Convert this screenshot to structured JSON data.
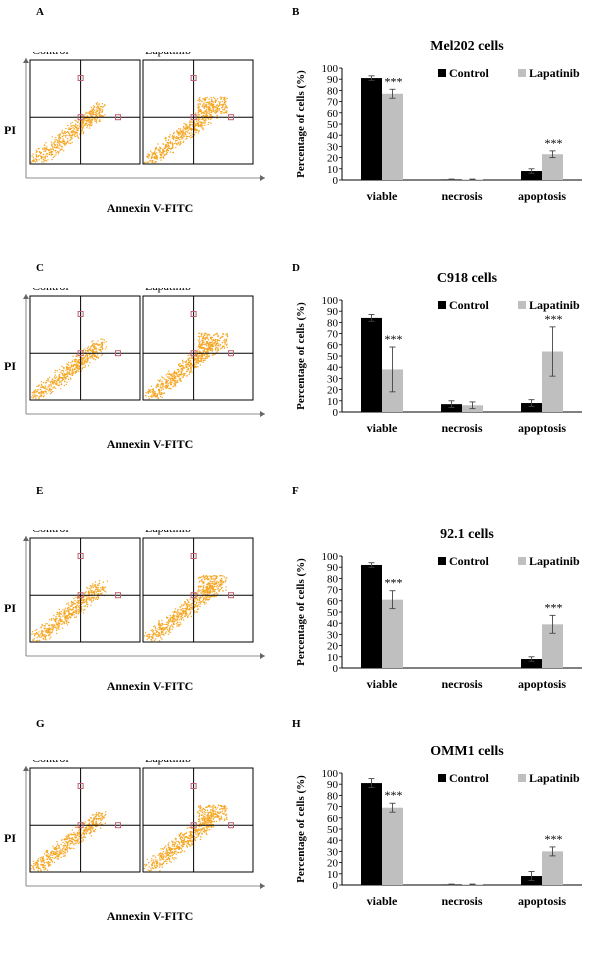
{
  "colors": {
    "control": "#000000",
    "lapatinib": "#bfbfbf",
    "dots": "#f5a623",
    "marker": "#c06070"
  },
  "figure": {
    "rows": [
      {
        "flow_letter": "A",
        "bar_letter": "B",
        "flow": {
          "left_label": "Control",
          "right_label": "Lapatinib",
          "y_label": "PI",
          "x_label": "Annexin V-FITC"
        },
        "legend": {
          "control": "Control",
          "lapatinib": "Lapatinib"
        },
        "significance": "***"
      },
      {
        "flow_letter": "C",
        "bar_letter": "D",
        "flow": {
          "left_label": "Control",
          "right_label": "Lapatinib",
          "y_label": "PI",
          "x_label": "Annexin V-FITC"
        },
        "legend": {
          "control": "Control",
          "lapatinib": "Lapatinib"
        },
        "significance": "***"
      },
      {
        "flow_letter": "E",
        "bar_letter": "F",
        "flow": {
          "left_label": "Control",
          "right_label": "Lapatinib",
          "y_label": "PI",
          "x_label": "Annexin V-FITC"
        },
        "legend": {
          "control": "Control",
          "lapatinib": "Lapatinib"
        },
        "significance": "***"
      },
      {
        "flow_letter": "G",
        "bar_letter": "H",
        "flow": {
          "left_label": "Control",
          "right_label": "Lapatinib",
          "y_label": "PI",
          "x_label": "Annexin V-FITC"
        },
        "legend": {
          "control": "Control",
          "lapatinib": "Lapatinib"
        },
        "significance": "***"
      }
    ]
  },
  "chart_data": [
    {
      "type": "bar",
      "title": "Mel202 cells",
      "ylabel": "Percentage of cells (%)",
      "ylim": [
        0,
        100
      ],
      "yticks": [
        0,
        10,
        20,
        30,
        40,
        50,
        60,
        70,
        80,
        90,
        100
      ],
      "categories": [
        "viable",
        "necrosis",
        "apoptosis"
      ],
      "series": [
        {
          "name": "Control",
          "values": [
            91,
            0.5,
            8
          ],
          "errors": [
            2,
            0.3,
            2
          ]
        },
        {
          "name": "Lapatinib",
          "values": [
            77,
            0.5,
            23
          ],
          "errors": [
            4,
            0.3,
            3
          ]
        }
      ],
      "annotations": [
        {
          "category": "viable",
          "series": "Lapatinib",
          "text": "***"
        },
        {
          "category": "apoptosis",
          "series": "Lapatinib",
          "text": "***"
        }
      ]
    },
    {
      "type": "bar",
      "title": "C918 cells",
      "ylabel": "Percentage of cells (%)",
      "ylim": [
        0,
        100
      ],
      "yticks": [
        0,
        10,
        20,
        30,
        40,
        50,
        60,
        70,
        80,
        90,
        100
      ],
      "categories": [
        "viable",
        "necrosis",
        "apoptosis"
      ],
      "series": [
        {
          "name": "Control",
          "values": [
            84,
            7,
            8
          ],
          "errors": [
            3,
            3,
            3
          ]
        },
        {
          "name": "Lapatinib",
          "values": [
            38,
            6,
            54
          ],
          "errors": [
            20,
            3,
            22
          ]
        }
      ],
      "annotations": [
        {
          "category": "viable",
          "series": "Lapatinib",
          "text": "***"
        },
        {
          "category": "apoptosis",
          "series": "Lapatinib",
          "text": "***"
        }
      ]
    },
    {
      "type": "bar",
      "title": "92.1 cells",
      "ylabel": "Percentage of cells (%)",
      "ylim": [
        0,
        100
      ],
      "yticks": [
        0,
        10,
        20,
        30,
        40,
        50,
        60,
        70,
        80,
        90,
        100
      ],
      "categories": [
        "viable",
        "necrosis",
        "apoptosis"
      ],
      "series": [
        {
          "name": "Control",
          "values": [
            92,
            0,
            8
          ],
          "errors": [
            2,
            0,
            2
          ]
        },
        {
          "name": "Lapatinib",
          "values": [
            61,
            0,
            39
          ],
          "errors": [
            8,
            0,
            8
          ]
        }
      ],
      "annotations": [
        {
          "category": "viable",
          "series": "Lapatinib",
          "text": "***"
        },
        {
          "category": "apoptosis",
          "series": "Lapatinib",
          "text": "***"
        }
      ]
    },
    {
      "type": "bar",
      "title": "OMM1 cells",
      "ylabel": "Percentage of cells (%)",
      "ylim": [
        0,
        100
      ],
      "yticks": [
        0,
        10,
        20,
        30,
        40,
        50,
        60,
        70,
        80,
        90,
        100
      ],
      "categories": [
        "viable",
        "necrosis",
        "apoptosis"
      ],
      "series": [
        {
          "name": "Control",
          "values": [
            91,
            0.5,
            8
          ],
          "errors": [
            4,
            0.3,
            4
          ]
        },
        {
          "name": "Lapatinib",
          "values": [
            69,
            0.5,
            30
          ],
          "errors": [
            4,
            0.3,
            4
          ]
        }
      ],
      "annotations": [
        {
          "category": "viable",
          "series": "Lapatinib",
          "text": "***"
        },
        {
          "category": "apoptosis",
          "series": "Lapatinib",
          "text": "***"
        }
      ]
    }
  ]
}
